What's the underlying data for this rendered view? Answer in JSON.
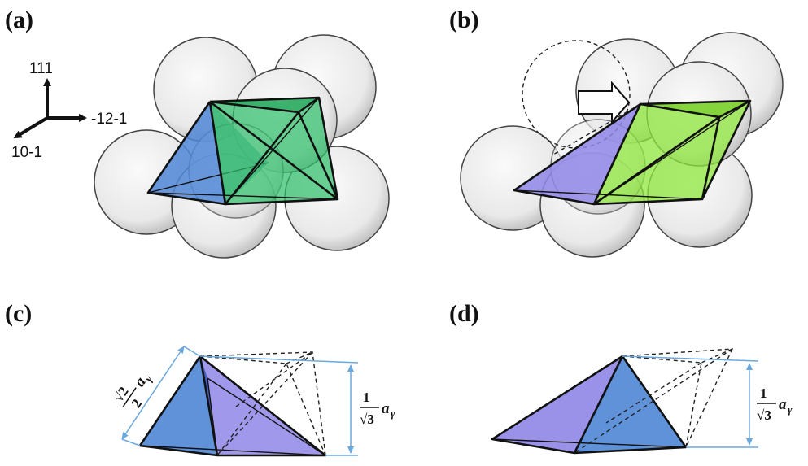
{
  "panels": {
    "a": "(a)",
    "b": "(b)",
    "c": "(c)",
    "d": "(d)"
  },
  "axes": {
    "up": "111",
    "right": "-12-1",
    "down_left": "10-1"
  },
  "dimensions": {
    "c_edge": {
      "num": "√2",
      "den": "2",
      "sym": "a",
      "sub": "γ"
    },
    "c_height": {
      "num": "1",
      "den": "√3",
      "sym": "a",
      "sub": "γ"
    },
    "d_height": {
      "num": "1",
      "den": "√3",
      "sym": "a",
      "sub": "γ"
    }
  },
  "colors": {
    "sphere": "#e9e9e9",
    "tetra_blue": "#4f86d6",
    "octa_green": "#2fbf6a",
    "tetra_purple": "#8f86e6",
    "octa_lime": "#8ee63a",
    "dimension_line": "#6aa8e0"
  }
}
